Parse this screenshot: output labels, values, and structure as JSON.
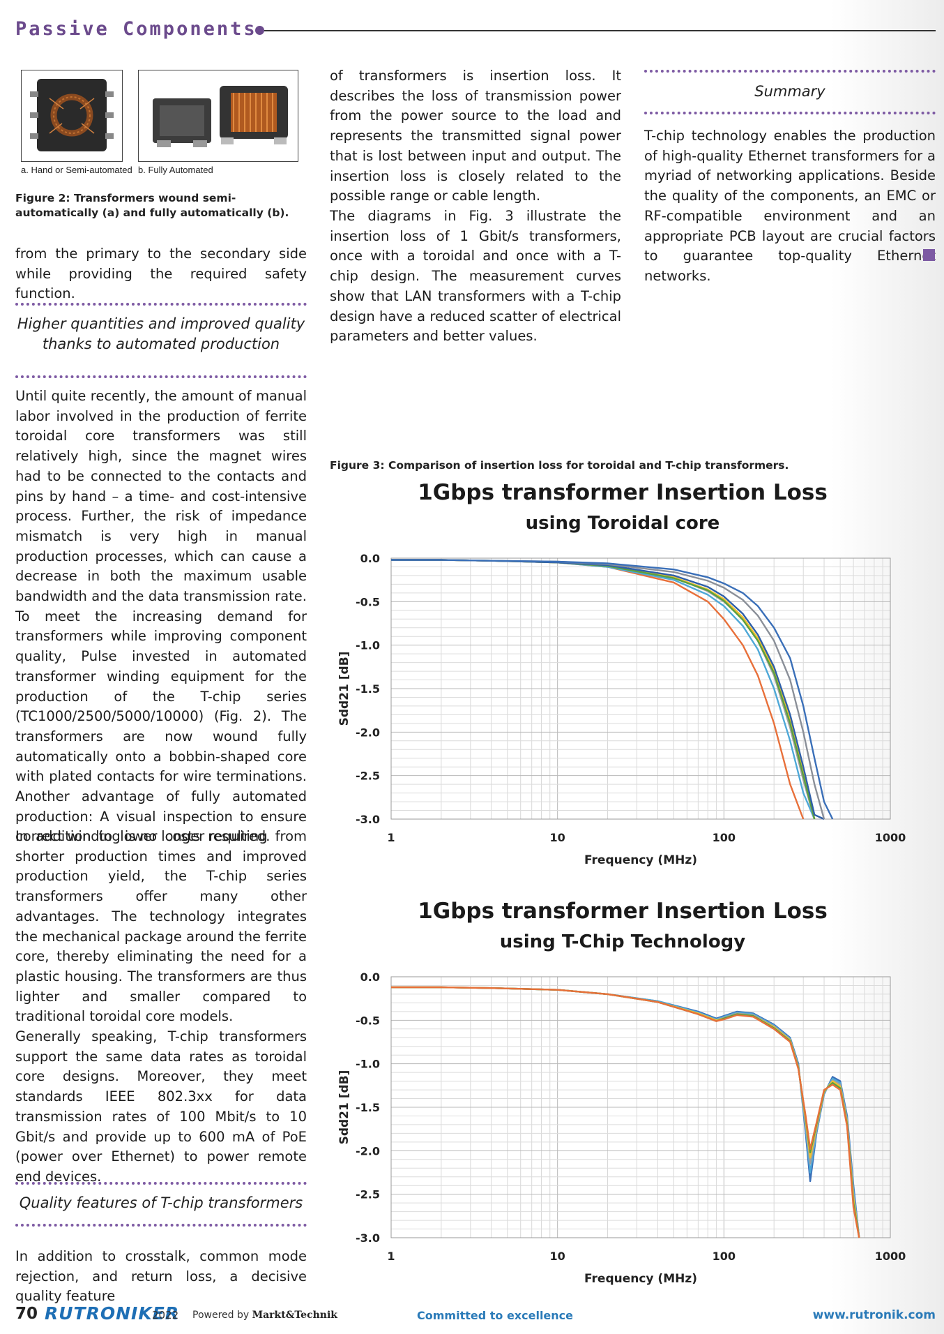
{
  "header": {
    "title": "Passive Components"
  },
  "figure2": {
    "label_a": "a. Hand or Semi-automated",
    "label_b": "b. Fully Automated",
    "caption": "Figure 2: Transformers wound semi-automatically (a) and fully automatically (b)."
  },
  "col1": {
    "p1": "from the primary to the secondary side while providing the required safety function.",
    "section1_line1": "Higher quantities and improved quality",
    "section1_line2": "thanks to automated production",
    "p2": "Until quite recently, the amount of manual labor involved in the production of ferrite toroidal core transformers was still relatively high, since the magnet wires had to be connected to the contacts and pins by hand – a time- and cost-intensive process. Further, the risk of impedance mismatch is very high in manual production processes, which can cause a decrease in both the maximum usable bandwidth and the data transmission rate. To meet the increasing demand for transformers while improving component quality, Pulse invested in automated transformer winding equipment for the production of the T-chip series (TC1000/2500/5000/10000) (Fig. 2). The transformers are now wound fully automatically onto a bobbin-shaped core with plated contacts for wire terminations. Another advantage of fully automated production: A visual inspection to ensure correct winding is no longer required.",
    "p3": "In addition to lower costs resulting from shorter production times and improved production yield, the T-chip series transformers offer many other advantages. The technology integrates the mechanical package around the ferrite core, thereby eliminating the need for a plastic housing. The transformers are thus lighter and smaller compared to traditional toroidal core models.",
    "p4": "Generally speaking, T-chip transformers support the same data rates as toroidal core designs. Moreover, they meet standards IEEE 802.3xx for data transmission rates of 100 Mbit/s to 10 Gbit/s and provide up to 600 mA of PoE (power over Ethernet) to power remote end devices.",
    "section2": "Quality features of T-chip transformers",
    "p5": "In addition to crosstalk, common mode rejection, and return loss, a decisive quality feature"
  },
  "col2": {
    "p1": "of transformers is insertion loss. It describes the loss of transmission power from the power source to the load and represents the transmitted signal power that is lost between input and output. The insertion loss is closely related to the possible range or cable length.",
    "p2": "The diagrams in Fig. 3 illustrate the insertion loss of 1 Gbit/s transformers, once with a toroidal and once with a T-chip design. The measurement curves show that LAN transformers with a T-chip design have a reduced scatter of electrical parameters and better values.",
    "fig3_caption": "Figure 3: Comparison of insertion loss for toroidal and T-chip transformers."
  },
  "col3": {
    "section": "Summary",
    "p1": "T-chip technology enables the production of high-quality Ethernet transformers for a myriad of networking applications. Beside the quality of the components, an EMC or RF-compatible environment and an appropriate PCB layout are crucial factors to guarantee top-quality Ethernet networks."
  },
  "chart_data": [
    {
      "type": "line",
      "title": "1Gbps transformer Insertion Loss",
      "subtitle": "using Toroidal core",
      "xlabel": "Frequency (MHz)",
      "ylabel": "Sdd21 [dB]",
      "xscale": "log",
      "xlim": [
        1,
        1000
      ],
      "ylim": [
        -3.0,
        0.0
      ],
      "xticks": [
        "1",
        "10",
        "100",
        "1000"
      ],
      "yticks": [
        "0.0",
        "-0.5",
        "-1.0",
        "-1.5",
        "-2.0",
        "-2.5",
        "-3.0"
      ],
      "grid": true,
      "legend": "none",
      "x": [
        1,
        2,
        4,
        10,
        20,
        50,
        80,
        100,
        130,
        160,
        200,
        250,
        300,
        350,
        400,
        450
      ],
      "series": [
        {
          "color": "#e8703a",
          "values": [
            -0.02,
            -0.02,
            -0.03,
            -0.05,
            -0.1,
            -0.28,
            -0.5,
            -0.7,
            -1.0,
            -1.35,
            -1.9,
            -2.6,
            -3.0,
            null,
            null,
            null
          ]
        },
        {
          "color": "#4ea8d8",
          "values": [
            -0.02,
            -0.02,
            -0.03,
            -0.05,
            -0.1,
            -0.25,
            -0.42,
            -0.55,
            -0.78,
            -1.05,
            -1.5,
            -2.1,
            -2.7,
            -3.0,
            null,
            null
          ]
        },
        {
          "color": "#a0a0a0",
          "values": [
            -0.02,
            -0.02,
            -0.03,
            -0.05,
            -0.08,
            -0.22,
            -0.38,
            -0.5,
            -0.7,
            -0.95,
            -1.35,
            -1.95,
            -2.55,
            -3.0,
            null,
            null
          ]
        },
        {
          "color": "#f0c030",
          "values": [
            -0.02,
            -0.02,
            -0.03,
            -0.05,
            -0.09,
            -0.22,
            -0.36,
            -0.47,
            -0.68,
            -0.92,
            -1.28,
            -1.85,
            -2.45,
            -3.0,
            null,
            null
          ]
        },
        {
          "color": "#5aa040",
          "values": [
            -0.02,
            -0.02,
            -0.03,
            -0.05,
            -0.09,
            -0.23,
            -0.37,
            -0.49,
            -0.71,
            -0.95,
            -1.32,
            -1.9,
            -2.5,
            -3.0,
            null,
            null
          ]
        },
        {
          "color": "#2e5fa8",
          "values": [
            -0.02,
            -0.02,
            -0.03,
            -0.05,
            -0.08,
            -0.2,
            -0.33,
            -0.44,
            -0.64,
            -0.88,
            -1.25,
            -1.8,
            -2.4,
            -2.95,
            -3.0,
            null
          ]
        },
        {
          "color": "#8a8f98",
          "values": [
            -0.02,
            -0.02,
            -0.03,
            -0.04,
            -0.07,
            -0.16,
            -0.26,
            -0.34,
            -0.48,
            -0.66,
            -0.95,
            -1.4,
            -2.0,
            -2.6,
            -3.0,
            null
          ]
        },
        {
          "color": "#3a6fb8",
          "values": [
            -0.02,
            -0.02,
            -0.03,
            -0.04,
            -0.06,
            -0.13,
            -0.22,
            -0.29,
            -0.4,
            -0.55,
            -0.8,
            -1.15,
            -1.7,
            -2.3,
            -2.8,
            -3.0
          ]
        }
      ]
    },
    {
      "type": "line",
      "title": "1Gbps transformer Insertion Loss",
      "subtitle": "using T-Chip Technology",
      "xlabel": "Frequency (MHz)",
      "ylabel": "Sdd21 [dB]",
      "xscale": "log",
      "xlim": [
        1,
        1000
      ],
      "ylim": [
        -3.0,
        0.0
      ],
      "xticks": [
        "1",
        "10",
        "100",
        "1000"
      ],
      "yticks": [
        "0.0",
        "-0.5",
        "-1.0",
        "-1.5",
        "-2.0",
        "-2.5",
        "-3.0"
      ],
      "grid": true,
      "legend": "none",
      "x": [
        1,
        2,
        4,
        10,
        20,
        40,
        70,
        90,
        100,
        120,
        150,
        200,
        250,
        280,
        310,
        330,
        360,
        400,
        450,
        500,
        550,
        600,
        650
      ],
      "series": [
        {
          "color": "#3a6fb8",
          "values": [
            -0.12,
            -0.12,
            -0.13,
            -0.15,
            -0.2,
            -0.28,
            -0.4,
            -0.48,
            -0.45,
            -0.4,
            -0.42,
            -0.55,
            -0.7,
            -1.0,
            -1.8,
            -2.35,
            -1.8,
            -1.35,
            -1.15,
            -1.2,
            -1.6,
            -2.4,
            -3.0
          ]
        },
        {
          "color": "#4ea8d8",
          "values": [
            -0.12,
            -0.12,
            -0.13,
            -0.15,
            -0.2,
            -0.28,
            -0.41,
            -0.49,
            -0.46,
            -0.41,
            -0.43,
            -0.56,
            -0.71,
            -1.02,
            -1.75,
            -2.25,
            -1.78,
            -1.34,
            -1.17,
            -1.22,
            -1.63,
            -2.45,
            -3.0
          ]
        },
        {
          "color": "#a0a0a0",
          "values": [
            -0.12,
            -0.12,
            -0.13,
            -0.15,
            -0.2,
            -0.29,
            -0.42,
            -0.5,
            -0.47,
            -0.42,
            -0.44,
            -0.57,
            -0.72,
            -1.03,
            -1.7,
            -2.15,
            -1.75,
            -1.33,
            -1.19,
            -1.24,
            -1.65,
            -2.5,
            -3.0
          ]
        },
        {
          "color": "#f0c030",
          "values": [
            -0.12,
            -0.12,
            -0.13,
            -0.15,
            -0.2,
            -0.29,
            -0.42,
            -0.5,
            -0.48,
            -0.43,
            -0.45,
            -0.58,
            -0.73,
            -1.04,
            -1.65,
            -2.08,
            -1.72,
            -1.32,
            -1.2,
            -1.26,
            -1.68,
            -2.55,
            -3.0
          ]
        },
        {
          "color": "#5aa040",
          "values": [
            -0.12,
            -0.12,
            -0.13,
            -0.15,
            -0.2,
            -0.29,
            -0.43,
            -0.51,
            -0.48,
            -0.43,
            -0.45,
            -0.59,
            -0.74,
            -1.05,
            -1.62,
            -2.02,
            -1.7,
            -1.31,
            -1.22,
            -1.28,
            -1.7,
            -2.6,
            -3.0
          ]
        },
        {
          "color": "#e8703a",
          "values": [
            -0.12,
            -0.12,
            -0.13,
            -0.15,
            -0.2,
            -0.29,
            -0.43,
            -0.51,
            -0.49,
            -0.44,
            -0.46,
            -0.6,
            -0.75,
            -1.06,
            -1.6,
            -1.98,
            -1.68,
            -1.3,
            -1.24,
            -1.3,
            -1.72,
            -2.65,
            -3.0
          ]
        }
      ]
    }
  ],
  "footer": {
    "page": "70",
    "brand": "RUTRONIKER",
    "year": "2022",
    "powered_prefix": "Powered by",
    "powered_brand": "Markt&Technik",
    "tagline": "Committed to excellence",
    "website": "www.rutronik.com"
  },
  "colors": {
    "accent": "#7d5aa3",
    "brand": "#1e6fb5"
  }
}
